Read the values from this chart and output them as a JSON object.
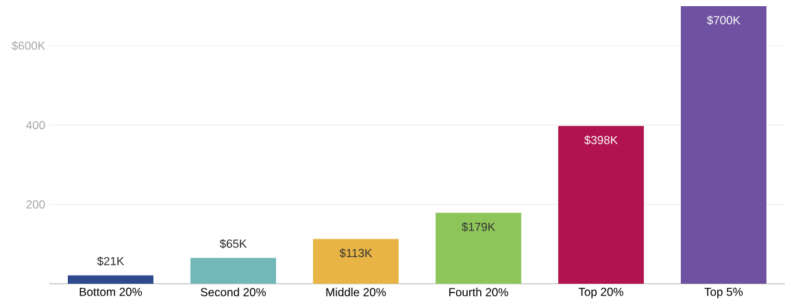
{
  "chart_data": {
    "type": "bar",
    "categories": [
      "Bottom 20%",
      "Second 20%",
      "Middle 20%",
      "Fourth 20%",
      "Top 20%",
      "Top 5%"
    ],
    "values": [
      21,
      65,
      113,
      179,
      398,
      700
    ],
    "colors": [
      "#2e4a8c",
      "#72b8b8",
      "#e8b445",
      "#8dc55a",
      "#b0134e",
      "#6e51a0"
    ],
    "value_labels": [
      "$21K",
      "$65K",
      "$113K",
      "$179K",
      "$398K",
      "$700K"
    ],
    "ylim": [
      0,
      700
    ],
    "yticks": [
      {
        "value": 200,
        "label": "200"
      },
      {
        "value": 400,
        "label": "400"
      },
      {
        "value": 600,
        "label": "$600K"
      }
    ],
    "grid": "y"
  }
}
